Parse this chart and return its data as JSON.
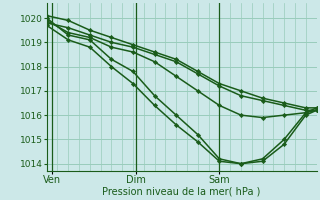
{
  "background_color": "#cce8e8",
  "grid_color": "#99ccbb",
  "line_color": "#1a5c1a",
  "marker_color": "#1a5c1a",
  "ylim": [
    1013.7,
    1020.6
  ],
  "xlim": [
    0,
    100
  ],
  "yticks": [
    1014,
    1015,
    1016,
    1017,
    1018,
    1019,
    1020
  ],
  "xlabel": "Pression niveau de la mer( hPa )",
  "xtick_labels": [
    "Ven",
    "Dim",
    "Sam"
  ],
  "xtick_positions": [
    2,
    33,
    64
  ],
  "vline_positions": [
    2,
    33,
    64
  ],
  "lines": [
    {
      "x": [
        0,
        8,
        16,
        24,
        32,
        40,
        48,
        56,
        64,
        72,
        80,
        88,
        96,
        100
      ],
      "y": [
        1020.1,
        1019.9,
        1019.5,
        1019.2,
        1018.9,
        1018.6,
        1018.3,
        1017.8,
        1017.3,
        1017.0,
        1016.7,
        1016.5,
        1016.3,
        1016.3
      ],
      "marker": "D",
      "lw": 1.1
    },
    {
      "x": [
        0,
        8,
        16,
        24,
        32,
        40,
        48,
        56,
        64,
        72,
        80,
        88,
        96,
        100
      ],
      "y": [
        1019.8,
        1019.6,
        1019.3,
        1019.0,
        1018.8,
        1018.5,
        1018.2,
        1017.7,
        1017.2,
        1016.8,
        1016.6,
        1016.4,
        1016.2,
        1016.2
      ],
      "marker": "D",
      "lw": 1.1
    },
    {
      "x": [
        0,
        8,
        16,
        24,
        32,
        40,
        48,
        56,
        64,
        72,
        80,
        88,
        96,
        100
      ],
      "y": [
        1019.9,
        1019.4,
        1019.2,
        1018.8,
        1018.6,
        1018.2,
        1017.6,
        1017.0,
        1016.4,
        1016.0,
        1015.9,
        1016.0,
        1016.1,
        1016.2
      ],
      "marker": "D",
      "lw": 1.1
    },
    {
      "x": [
        0,
        8,
        16,
        24,
        32,
        40,
        48,
        56,
        64,
        72,
        80,
        88,
        96,
        100
      ],
      "y": [
        1020.0,
        1019.3,
        1019.1,
        1018.3,
        1017.8,
        1016.8,
        1016.0,
        1015.2,
        1014.2,
        1014.0,
        1014.1,
        1014.8,
        1016.0,
        1016.2
      ],
      "marker": "D",
      "lw": 1.1
    },
    {
      "x": [
        0,
        8,
        16,
        24,
        32,
        40,
        48,
        56,
        64,
        72,
        80,
        88,
        96,
        100
      ],
      "y": [
        1019.7,
        1019.1,
        1018.8,
        1018.0,
        1017.3,
        1016.4,
        1015.6,
        1014.9,
        1014.1,
        1014.0,
        1014.2,
        1015.0,
        1016.1,
        1016.3
      ],
      "marker": "D",
      "lw": 1.1
    }
  ]
}
